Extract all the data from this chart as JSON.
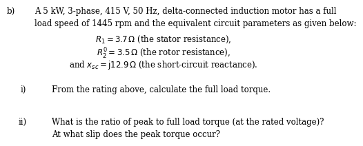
{
  "background_color": "#ffffff",
  "label_b": "b)",
  "line1": "A 5 kW, 3-phase, 415 V, 50 Hz, delta-connected induction motor has a full",
  "line2": "load speed of 1445 rpm and the equivalent circuit parameters as given below:",
  "eq1": "$R_1 = 3.7\\,\\Omega$ (the stator resistance),",
  "eq2": "$R_2^{\\prime} = 3.5\\,\\Omega$ (the rotor resistance),",
  "eq3": "and $x_{sc} = \\mathrm{j}12.9\\,\\Omega$ (the short-circuit reactance).",
  "label_i": "i)",
  "text_i": "From the rating above, calculate the full load torque.",
  "label_ii": "ii)",
  "text_ii_1": "What is the ratio of peak to full load torque (at the rated voltage)?",
  "text_ii_2": "At what slip does the peak torque occur?",
  "font_size": 8.5,
  "font_family": "serif"
}
